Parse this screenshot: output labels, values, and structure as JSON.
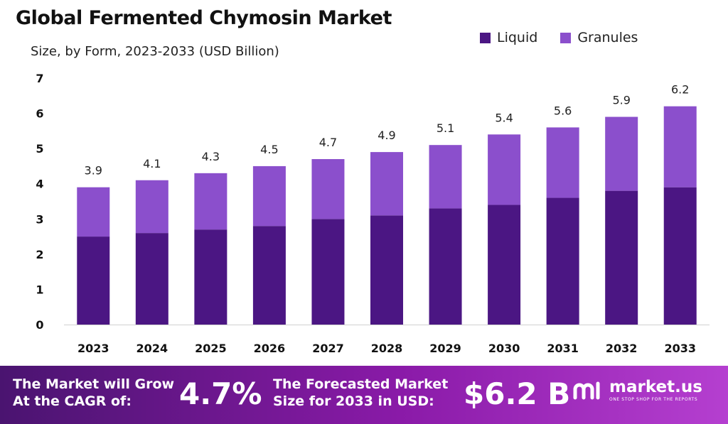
{
  "chart_data": {
    "type": "bar",
    "stacked": true,
    "title": "Global Fermented Chymosin Market",
    "subtitle": "Size, by Form, 2023-2033 (USD Billion)",
    "categories": [
      "2023",
      "2024",
      "2025",
      "2026",
      "2027",
      "2028",
      "2029",
      "2030",
      "2031",
      "2032",
      "2033"
    ],
    "series": [
      {
        "name": "Liquid",
        "color": "#4b1683",
        "values": [
          2.5,
          2.6,
          2.7,
          2.8,
          3.0,
          3.1,
          3.3,
          3.4,
          3.6,
          3.8,
          3.9
        ]
      },
      {
        "name": "Granules",
        "color": "#8b4fcc",
        "values": [
          1.4,
          1.5,
          1.6,
          1.7,
          1.7,
          1.8,
          1.8,
          2.0,
          2.0,
          2.1,
          2.3
        ]
      }
    ],
    "totals": [
      "3.9",
      "4.1",
      "4.3",
      "4.5",
      "4.7",
      "4.9",
      "5.1",
      "5.4",
      "5.6",
      "5.9",
      "6.2"
    ],
    "yticks": [
      "0",
      "1",
      "2",
      "3",
      "4",
      "5",
      "6",
      "7"
    ],
    "ylim": [
      0,
      7
    ],
    "grid": false,
    "legend_position": "top-right"
  },
  "footer": {
    "cagr_label_line1": "The Market will Grow",
    "cagr_label_line2": "At the CAGR of:",
    "cagr_value": "4.7%",
    "forecast_label_line1": "The Forecasted Market",
    "forecast_label_line2": "Size for 2033 in USD:",
    "forecast_value": "$6.2 B",
    "brand_name": "market.us",
    "brand_tagline": "ONE STOP SHOP FOR THE REPORTS"
  }
}
